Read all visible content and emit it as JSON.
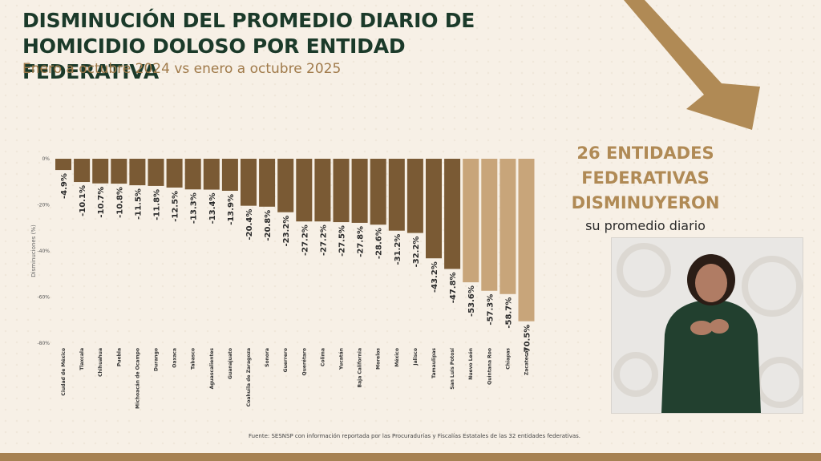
{
  "header": {
    "title": "DISMINUCIÓN DEL PROMEDIO DIARIO DE HOMICIDIO DOLOSO POR ENTIDAD FEDERATIVA",
    "subtitle": "Enero a octubre 2024 vs enero a octubre 2025"
  },
  "callout": {
    "line1": "26 ENTIDADES",
    "line2": "FEDERATIVAS",
    "line3": "DISMINUYERON",
    "line4": "su promedio diario"
  },
  "source": "Fuente: SESNSP con información reportada por las Procuradurías y Fiscalías Estatales de las 32 entidades federativas.",
  "colors": {
    "accent": "#b08a55",
    "title": "#1b3a2a",
    "bar_dark": "#7a5a34",
    "bar_light": "#c8a57a",
    "background": "#f7f0e6"
  },
  "chart_data": {
    "type": "bar",
    "ylabel": "Disminuciones (%)",
    "ylim": [
      -80,
      0
    ],
    "yticks": [
      "0%",
      "-20%",
      "-40%",
      "-60%",
      "-80%"
    ],
    "grid": false,
    "categories": [
      "Ciudad de México",
      "Tlaxcala",
      "Chihuahua",
      "Puebla",
      "Michoacán de Ocampo",
      "Durango",
      "Oaxaca",
      "Tabasco",
      "Aguascalientes",
      "Guanajuato",
      "Coahuila de Zaragoza",
      "Sonora",
      "Guerrero",
      "Querétaro",
      "Colima",
      "Yucatán",
      "Baja California",
      "Morelos",
      "México",
      "Jalisco",
      "Tamaulipas",
      "San Luis Potosí",
      "Nuevo León",
      "Quintana Roo",
      "Chiapas",
      "Zacatecas"
    ],
    "values": [
      -4.9,
      -10.1,
      -10.7,
      -10.8,
      -11.5,
      -11.8,
      -12.5,
      -13.3,
      -13.4,
      -13.9,
      -20.4,
      -20.8,
      -23.2,
      -27.2,
      -27.2,
      -27.5,
      -27.8,
      -28.6,
      -31.2,
      -32.2,
      -43.2,
      -47.8,
      -53.6,
      -57.3,
      -58.7,
      -70.5
    ],
    "labels": [
      "-4.9%",
      "-10.1%",
      "-10.7%",
      "-10.8%",
      "-11.5%",
      "-11.8%",
      "-12.5%",
      "-13.3%",
      "-13.4%",
      "-13.9%",
      "-20.4%",
      "-20.8%",
      "-23.2%",
      "-27.2%",
      "-27.2%",
      "-27.5%",
      "-27.8%",
      "-28.6%",
      "-31.2%",
      "-32.2%",
      "-43.2%",
      "-47.8%",
      "-53.6%",
      "-57.3%",
      "-58.7%",
      "-70.5%"
    ]
  }
}
